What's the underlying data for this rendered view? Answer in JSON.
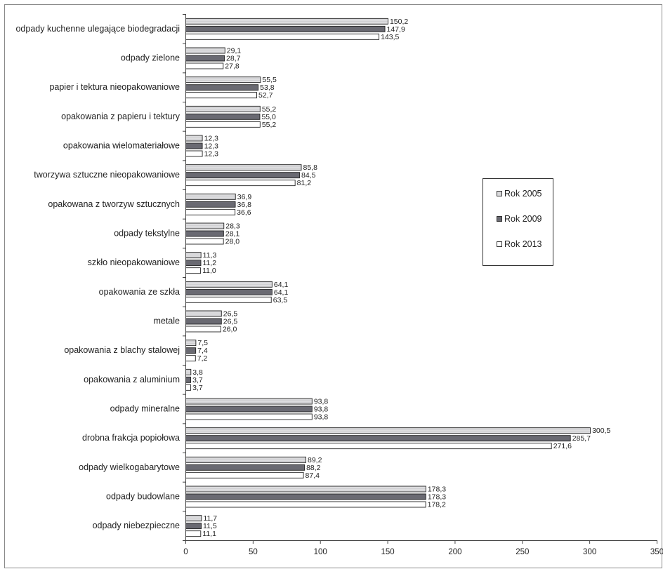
{
  "chart_data": {
    "type": "bar",
    "orientation": "horizontal",
    "title": "",
    "xlabel": "",
    "ylabel": "",
    "xlim": [
      0,
      350
    ],
    "xticks": [
      0,
      50,
      100,
      150,
      200,
      250,
      300,
      350
    ],
    "grid": false,
    "legend_position": "right",
    "categories": [
      "odpady kuchenne ulegające biodegradacji",
      "odpady zielone",
      "papier i tektura nieopakowaniowe",
      "opakowania z papieru i tektury",
      "opakowania wielomateriałowe",
      "tworzywa sztuczne nieopakowaniowe",
      "opakowana z tworzyw sztucznych",
      "odpady tekstylne",
      "szkło nieopakowaniowe",
      "opakowania ze szkła",
      "metale",
      "opakowania z blachy stalowej",
      "opakowania z aluminium",
      "odpady mineralne",
      "drobna frakcja popiołowa",
      "odpady wielkogabarytowe",
      "odpady budowlane",
      "odpady niebezpieczne"
    ],
    "series": [
      {
        "name": "Rok 2005",
        "color": "#dcdcde",
        "value_labels": [
          "150,2",
          "29,1",
          "55,5",
          "55,2",
          "12,3",
          "85,8",
          "36,9",
          "28,3",
          "11,3",
          "64,1",
          "26,5",
          "7,5",
          "3,8",
          "93,8",
          "300,5",
          "89,2",
          "178,3",
          "11,7"
        ],
        "values": [
          150.2,
          29.1,
          55.5,
          55.2,
          12.3,
          85.8,
          36.9,
          28.3,
          11.3,
          64.1,
          26.5,
          7.5,
          3.8,
          93.8,
          300.5,
          89.2,
          178.3,
          11.7
        ]
      },
      {
        "name": "Rok 2009",
        "color": "#6a6a72",
        "value_labels": [
          "147,9",
          "28,7",
          "53,8",
          "55,0",
          "12,3",
          "84,5",
          "36,8",
          "28,1",
          "11,2",
          "64,1",
          "26,5",
          "7,4",
          "3,7",
          "93,8",
          "285,7",
          "88,2",
          "178,3",
          "11,5"
        ],
        "values": [
          147.9,
          28.7,
          53.8,
          55.0,
          12.3,
          84.5,
          36.8,
          28.1,
          11.2,
          64.1,
          26.5,
          7.4,
          3.7,
          93.8,
          285.7,
          88.2,
          178.3,
          11.5
        ]
      },
      {
        "name": "Rok 2013",
        "color": "#ffffff",
        "value_labels": [
          "143,5",
          "27,8",
          "52,7",
          "55,2",
          "12,3",
          "81,2",
          "36,6",
          "28,0",
          "11,0",
          "63,5",
          "26,0",
          "7,2",
          "3,7",
          "93,8",
          "271,6",
          "87,4",
          "178,2",
          "11,1"
        ],
        "values": [
          143.5,
          27.8,
          52.7,
          55.2,
          12.3,
          81.2,
          36.6,
          28.0,
          11.0,
          63.5,
          26.0,
          7.2,
          3.7,
          93.8,
          271.6,
          87.4,
          178.2,
          11.1
        ]
      }
    ]
  }
}
